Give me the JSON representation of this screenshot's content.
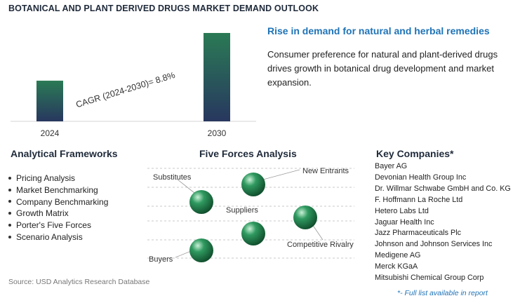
{
  "title": "BOTANICAL AND PLANT DERIVED DRUGS MARKET DEMAND OUTLOOK",
  "chart_data": {
    "type": "bar",
    "categories": [
      "2024",
      "2030"
    ],
    "values": [
      0.46,
      1.0
    ],
    "annotation": "CAGR (2024-2030)=  8.8%",
    "colors": {
      "top": "#2a7a55",
      "bottom": "#28375f"
    }
  },
  "headline": "Rise in demand for natural and herbal remedies",
  "description": "Consumer preference for natural and plant-derived drugs drives growth in botanical drug development and market expansion.",
  "frameworks": {
    "title": "Analytical Frameworks",
    "items": [
      "Pricing Analysis",
      "Market Benchmarking",
      "Company Benchmarking",
      "Growth Matrix",
      "Porter's Five Forces",
      "Scenario Analysis"
    ]
  },
  "five_forces": {
    "title": "Five Forces Analysis",
    "labels": {
      "substitutes": "Substitutes",
      "new_entrants": "New Entrants",
      "suppliers": "Suppliers",
      "competitive_rivalry": "Competitive Rivalry",
      "buyers": "Buyers"
    },
    "sphere_color": "#2f9a60"
  },
  "companies": {
    "title": "Key Companies*",
    "items": [
      "Bayer AG",
      "Devonian Health Group Inc",
      "Dr. Willmar Schwabe GmbH and Co. KG",
      "F. Hoffmann La Roche Ltd",
      "Hetero Labs Ltd",
      "Jaguar Health Inc",
      "Jazz Pharmaceuticals Plc",
      "Johnson and Johnson Services Inc",
      "Medigene AG",
      "Merck KGaA",
      "Mitsubishi Chemical Group Corp"
    ],
    "note": "*- Full list available in report"
  },
  "source": "Source: USD Analytics Research Database"
}
